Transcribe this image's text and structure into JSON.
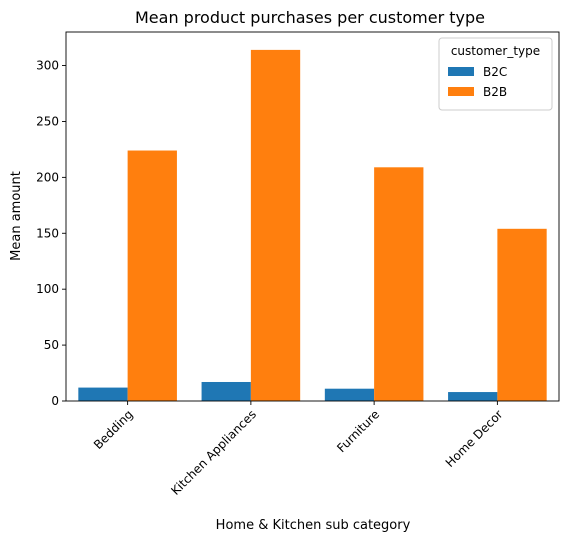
{
  "chart_data": {
    "type": "bar",
    "title": "Mean product purchases per customer type",
    "xlabel": "Home & Kitchen sub category",
    "ylabel": "Mean amount",
    "categories": [
      "Bedding",
      "Kitchen Appliances",
      "Furniture",
      "Home Decor"
    ],
    "series": [
      {
        "name": "B2C",
        "color": "#1f77b4",
        "values": [
          12,
          17,
          11,
          8
        ]
      },
      {
        "name": "B2B",
        "color": "#ff7f0e",
        "values": [
          224,
          314,
          209,
          154
        ]
      }
    ],
    "ylim": [
      0,
      330
    ],
    "yticks": [
      0,
      50,
      100,
      150,
      200,
      250,
      300
    ],
    "grid": false,
    "legend": {
      "title": "customer_type",
      "placement": "top-right"
    },
    "tick_label_rotation": 45
  }
}
